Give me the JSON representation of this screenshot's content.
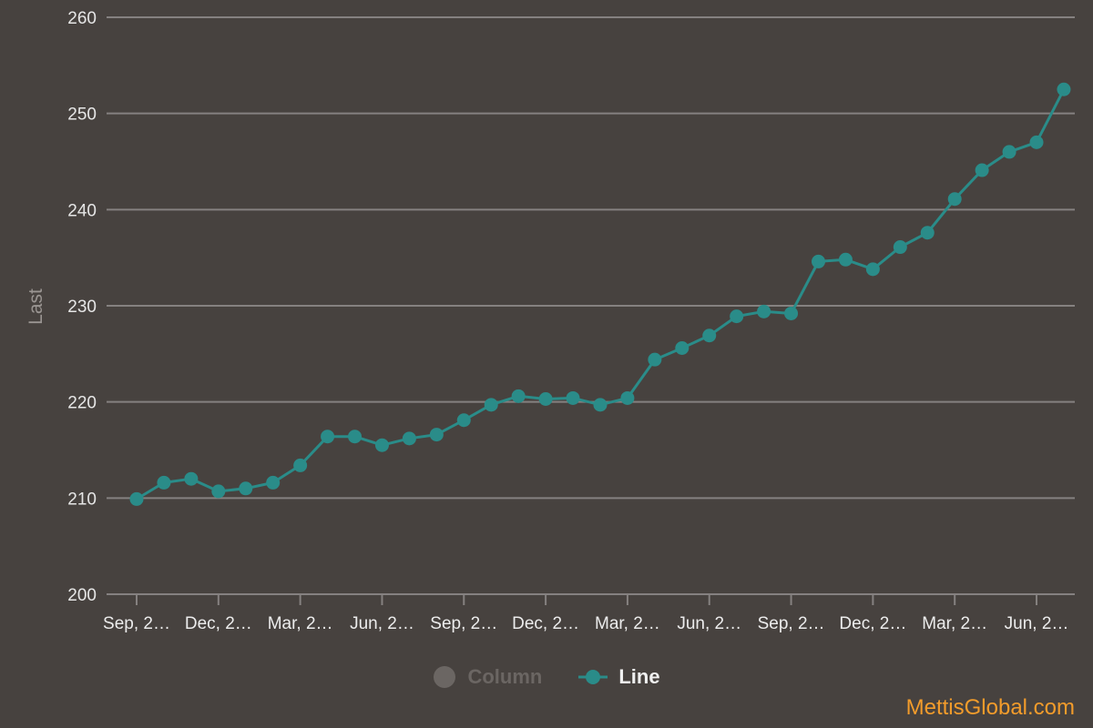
{
  "colors": {
    "background": "#47423f",
    "line": "#2a8c89",
    "grid": "#858180",
    "legend_inactive": "#6b6663",
    "watermark": "#f39c2b"
  },
  "legend": {
    "items": [
      {
        "label": "Column",
        "active": false,
        "icon": "circle-marker-icon"
      },
      {
        "label": "Line",
        "active": true,
        "icon": "line-marker-icon"
      }
    ]
  },
  "watermark": "MettisGlobal.com",
  "chart_data": {
    "type": "line",
    "ylabel": "Last",
    "ylim": [
      200,
      260
    ],
    "yticks": [
      200,
      210,
      220,
      230,
      240,
      250,
      260
    ],
    "xtick_labels": [
      "Sep, 2…",
      "Dec, 2…",
      "Mar, 2…",
      "Jun, 2…",
      "Sep, 2…",
      "Dec, 2…",
      "Mar, 2…",
      "Jun, 2…",
      "Sep, 2…",
      "Dec, 2…",
      "Mar, 2…",
      "Jun, 2…"
    ],
    "xtick_every": 3,
    "grid": true,
    "legend_position": "bottom",
    "series": [
      {
        "name": "Line",
        "values": [
          209.9,
          211.6,
          212.0,
          210.7,
          211.0,
          211.6,
          213.4,
          216.4,
          216.4,
          215.5,
          216.2,
          216.6,
          218.1,
          219.7,
          220.6,
          220.3,
          220.4,
          219.7,
          220.4,
          224.4,
          225.6,
          226.9,
          228.9,
          229.4,
          229.2,
          234.6,
          234.8,
          233.8,
          236.1,
          237.6,
          241.1,
          244.1,
          246.0,
          247.0,
          252.5
        ]
      }
    ]
  }
}
